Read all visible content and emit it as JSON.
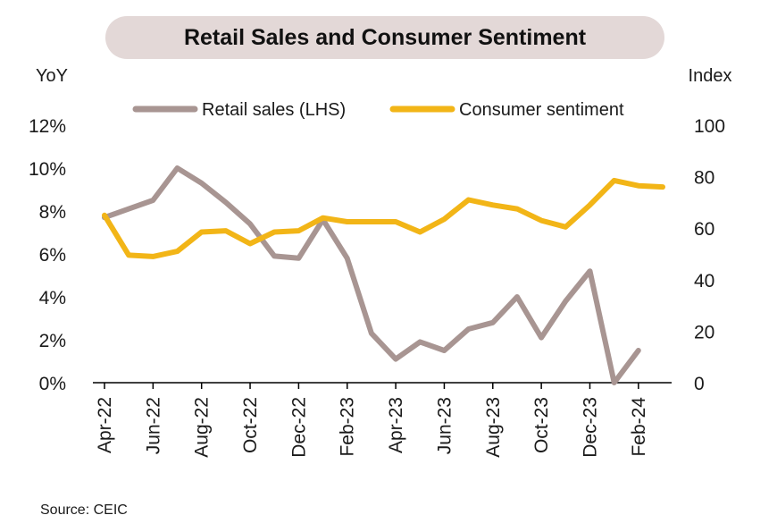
{
  "chart_data": {
    "type": "line",
    "title": "Retail Sales and Consumer Sentiment",
    "left_axis_label": "YoY",
    "right_axis_label": "Index",
    "left_ylim": [
      0,
      12
    ],
    "left_ticks": [
      "0%",
      "2%",
      "4%",
      "6%",
      "8%",
      "10%",
      "12%"
    ],
    "right_ylim": [
      0,
      100
    ],
    "right_ticks": [
      "0",
      "20",
      "40",
      "60",
      "80",
      "100"
    ],
    "x": [
      "Apr-22",
      "May-22",
      "Jun-22",
      "Jul-22",
      "Aug-22",
      "Sep-22",
      "Oct-22",
      "Nov-22",
      "Dec-22",
      "Jan-23",
      "Feb-23",
      "Mar-23",
      "Apr-23",
      "May-23",
      "Jun-23",
      "Jul-23",
      "Aug-23",
      "Sep-23",
      "Oct-23",
      "Nov-23",
      "Dec-23",
      "Jan-24",
      "Feb-24",
      "Mar-24"
    ],
    "x_tick_labels": [
      "Apr-22",
      "Jun-22",
      "Aug-22",
      "Oct-22",
      "Dec-22",
      "Feb-23",
      "Apr-23",
      "Jun-23",
      "Aug-23",
      "Oct-23",
      "Dec-23",
      "Feb-24"
    ],
    "series": [
      {
        "name": "Retail sales (LHS)",
        "axis": "left",
        "color": "#a89592",
        "values": [
          7.7,
          8.1,
          8.5,
          10.0,
          9.3,
          8.4,
          7.4,
          5.9,
          5.8,
          7.6,
          5.8,
          2.3,
          1.1,
          1.9,
          1.5,
          2.5,
          2.8,
          4.0,
          2.1,
          3.8,
          5.2,
          0.0,
          1.5,
          null
        ]
      },
      {
        "name": "Consumer sentiment",
        "axis": "right",
        "color": "#f2b517",
        "values": [
          65,
          49.5,
          49,
          51,
          58.5,
          59,
          54,
          58.5,
          59,
          64,
          62.5,
          62.5,
          62.5,
          58.5,
          63.5,
          71,
          69,
          67.5,
          63,
          60.5,
          69,
          78.5,
          76.5,
          76
        ]
      }
    ],
    "legend": "top"
  },
  "source": "Source:  CEIC"
}
